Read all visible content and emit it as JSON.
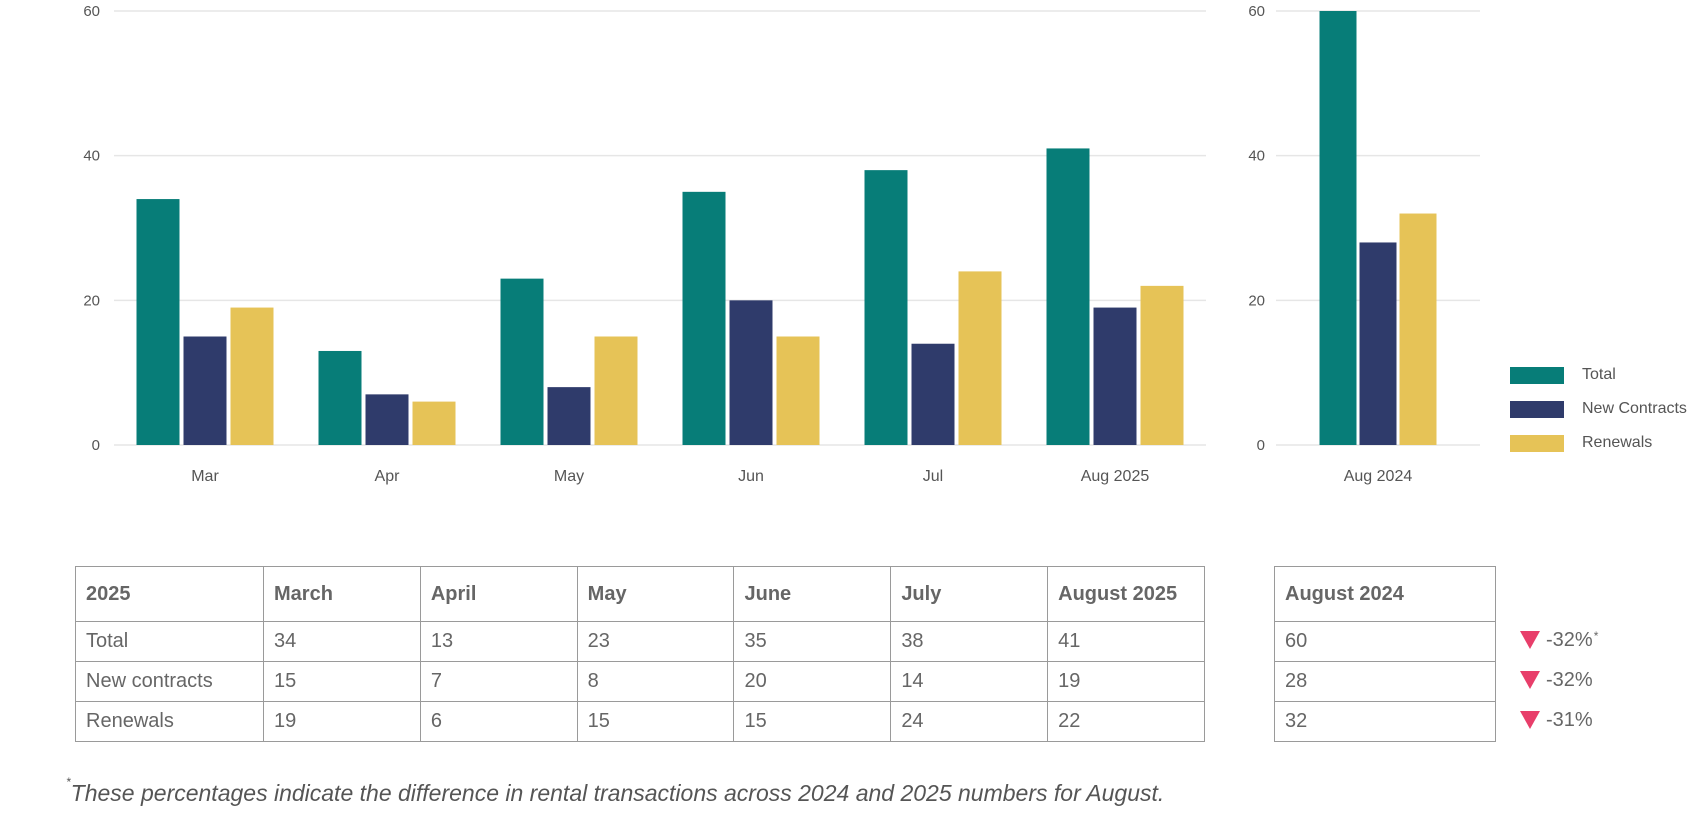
{
  "colors": {
    "total": "#077d78",
    "new_contracts": "#2f3b6b",
    "renewals": "#e6c357"
  },
  "chart_data": [
    {
      "type": "bar",
      "categories": [
        "Mar",
        "Apr",
        "May",
        "Jun",
        "Jul",
        "Aug 2025"
      ],
      "series": [
        {
          "name": "Total",
          "values": [
            34,
            13,
            23,
            35,
            38,
            41
          ]
        },
        {
          "name": "New Contracts",
          "values": [
            15,
            7,
            8,
            20,
            14,
            19
          ]
        },
        {
          "name": "Renewals",
          "values": [
            19,
            6,
            15,
            15,
            24,
            22
          ]
        }
      ],
      "ylim": [
        0,
        60
      ],
      "yticks": [
        0,
        20,
        40,
        60
      ],
      "grid": true,
      "legend": "right"
    },
    {
      "type": "bar",
      "categories": [
        "Aug 2024"
      ],
      "series": [
        {
          "name": "Total",
          "values": [
            60
          ]
        },
        {
          "name": "New Contracts",
          "values": [
            28
          ]
        },
        {
          "name": "Renewals",
          "values": [
            32
          ]
        }
      ],
      "ylim": [
        0,
        60
      ],
      "yticks": [
        0,
        20,
        40,
        60
      ],
      "grid": true,
      "legend": "right"
    }
  ],
  "legend": {
    "total": "Total",
    "new_contracts": "New Contracts",
    "renewals": "Renewals"
  },
  "table_2025": {
    "headers": [
      "2025",
      "March",
      "April",
      "May",
      "June",
      "July",
      "August 2025"
    ],
    "rows": [
      [
        "Total",
        "34",
        "13",
        "23",
        "35",
        "38",
        "41"
      ],
      [
        "New contracts",
        "15",
        "7",
        "8",
        "20",
        "14",
        "19"
      ],
      [
        "Renewals",
        "19",
        "6",
        "15",
        "15",
        "24",
        "22"
      ]
    ]
  },
  "table_2024": {
    "header": "August 2024",
    "rows": [
      "60",
      "28",
      "32"
    ]
  },
  "changes": [
    {
      "value": "-32%",
      "marker": "*"
    },
    {
      "value": "-32%",
      "marker": ""
    },
    {
      "value": "-31%",
      "marker": ""
    }
  ],
  "footnote": {
    "marker": "*",
    "text": "These percentages indicate the difference in rental transactions across 2024 and 2025 numbers for August."
  }
}
